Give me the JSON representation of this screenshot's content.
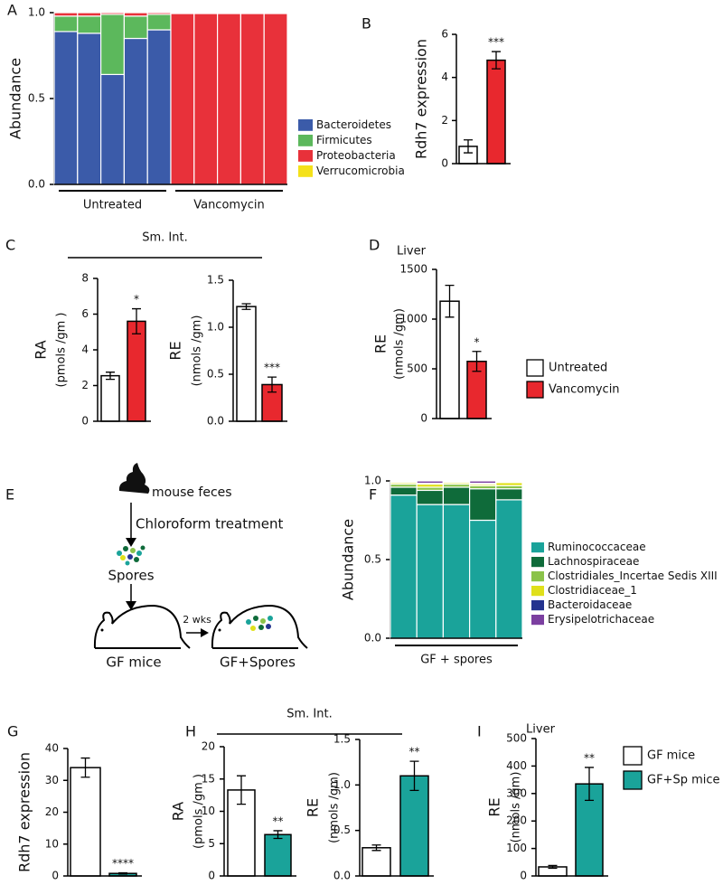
{
  "chart_data": [
    {
      "type": "stacked_bar",
      "panel": "A",
      "ylabel": "Abundance",
      "ylim": [
        0,
        1
      ],
      "yticks": [
        {
          "value": 0,
          "label": "0.0"
        },
        {
          "value": 0.5,
          "label": "0.5"
        },
        {
          "value": 1,
          "label": "1.0"
        }
      ],
      "groups": [
        "Untreated",
        "Vancomycin"
      ],
      "series": [
        {
          "name": "Bacteroidetes",
          "color": "#3b5ba9",
          "values": [
            0.89,
            0.88,
            0.64,
            0.85,
            0.9,
            0,
            0,
            0,
            0,
            0
          ]
        },
        {
          "name": "Firmicutes",
          "color": "#5cb85c",
          "values": [
            0.09,
            0.1,
            0.35,
            0.13,
            0.09,
            0,
            0,
            0,
            0,
            0
          ]
        },
        {
          "name": "Proteobacteria",
          "color": "#e8313a",
          "values": [
            0.02,
            0.02,
            0.01,
            0.02,
            0.01,
            0.995,
            0.995,
            0.995,
            0.995,
            0.995
          ]
        },
        {
          "name": "Verrucomicrobia",
          "color": "#f4e11a",
          "values": [
            0,
            0,
            0,
            0,
            0,
            0.005,
            0.005,
            0.005,
            0.005,
            0.005
          ]
        }
      ]
    },
    {
      "type": "bar",
      "panel": "B",
      "ylabel": "Rdh7 expression",
      "ylim": [
        0,
        6
      ],
      "yticks": [
        0,
        2,
        4,
        6
      ],
      "values": [
        0.8,
        4.8
      ],
      "errors": [
        0.3,
        0.4
      ],
      "colors": [
        "#ffffff",
        "#e8282e"
      ],
      "annotations": [
        null,
        "***"
      ]
    },
    {
      "type": "bar",
      "panel": "C",
      "group_title": "Sm. Int.",
      "ylabel": "RA",
      "ysublabel": "(pmols /gm )",
      "ylim": [
        0,
        8
      ],
      "yticks": [
        0,
        2,
        4,
        6,
        8
      ],
      "values": [
        2.55,
        5.6
      ],
      "errors": [
        0.2,
        0.7
      ],
      "colors": [
        "#ffffff",
        "#e8282e"
      ],
      "annotations": [
        null,
        "*"
      ]
    },
    {
      "type": "bar",
      "ylabel": "RE",
      "ysublabel": "(nmols /gm)",
      "ylim": [
        0,
        1.5
      ],
      "yticks": [
        {
          "value": 0,
          "label": "0.0"
        },
        {
          "value": 0.5,
          "label": "0.5"
        },
        {
          "value": 1,
          "label": "1.0"
        },
        {
          "value": 1.5,
          "label": "1.5"
        }
      ],
      "values": [
        1.22,
        0.39
      ],
      "errors": [
        0.03,
        0.08
      ],
      "colors": [
        "#ffffff",
        "#e8282e"
      ],
      "annotations": [
        null,
        "***"
      ]
    },
    {
      "type": "bar",
      "panel": "D",
      "title": "Liver",
      "ylabel": "RE",
      "ysublabel": "(nmols /gm)",
      "ylim": [
        0,
        1500
      ],
      "yticks": [
        0,
        500,
        1000,
        1500
      ],
      "values": [
        1180,
        575
      ],
      "errors": [
        160,
        100
      ],
      "colors": [
        "#ffffff",
        "#e8282e"
      ],
      "annotations": [
        null,
        "*"
      ]
    },
    {
      "type": "stacked_bar",
      "panel": "F",
      "ylabel": "Abundance",
      "ylim": [
        0,
        1
      ],
      "yticks": [
        {
          "value": 0,
          "label": "0.0"
        },
        {
          "value": 0.5,
          "label": "0.5"
        },
        {
          "value": 1,
          "label": "1.0"
        }
      ],
      "groups": [
        "GF + spores"
      ],
      "series": [
        {
          "name": "Ruminococcaceae",
          "color": "#1aa39a",
          "values": [
            0.91,
            0.85,
            0.85,
            0.75,
            0.88
          ]
        },
        {
          "name": "Lachnospiraceae",
          "color": "#0f6b3a",
          "values": [
            0.05,
            0.09,
            0.11,
            0.2,
            0.07
          ]
        },
        {
          "name": "Clostridiales_Incertae Sedis XIII",
          "color": "#8bc34a",
          "values": [
            0.02,
            0.02,
            0.02,
            0.02,
            0.02
          ]
        },
        {
          "name": "Clostridiaceae_1",
          "color": "#e0e01a",
          "values": [
            0.01,
            0.02,
            0.01,
            0.01,
            0.02
          ]
        },
        {
          "name": "Bacteroidaceae",
          "color": "#24338f",
          "values": [
            0.005,
            0.005,
            0.005,
            0.005,
            0.005
          ]
        },
        {
          "name": "Erysipelotrichaceae",
          "color": "#7b3fa0",
          "values": [
            0.005,
            0.015,
            0.005,
            0.015,
            0.005
          ]
        }
      ]
    },
    {
      "type": "bar",
      "panel": "G",
      "ylabel": "Rdh7 expression",
      "ylim": [
        0,
        40
      ],
      "yticks": [
        0,
        10,
        20,
        30,
        40
      ],
      "values": [
        34,
        0.8
      ],
      "errors": [
        3,
        0.2
      ],
      "colors": [
        "#ffffff",
        "#1aa39a"
      ],
      "annotations": [
        null,
        "****"
      ]
    },
    {
      "type": "bar",
      "panel": "H",
      "group_title": "Sm. Int.",
      "ylabel": "RA",
      "ysublabel": "(pmols /gm )",
      "ylim": [
        0,
        20
      ],
      "yticks": [
        0,
        5,
        10,
        15,
        20
      ],
      "values": [
        13.3,
        6.4
      ],
      "errors": [
        2.2,
        0.6
      ],
      "colors": [
        "#ffffff",
        "#1aa39a"
      ],
      "annotations": [
        null,
        "**"
      ]
    },
    {
      "type": "bar",
      "ylabel": "RE",
      "ysublabel": "(nmols /gm)",
      "ylim": [
        0,
        1.5
      ],
      "yticks": [
        {
          "value": 0,
          "label": "0.0"
        },
        {
          "value": 0.5,
          "label": "0.5"
        },
        {
          "value": 1,
          "label": "1.0"
        },
        {
          "value": 1.5,
          "label": "1.5"
        }
      ],
      "values": [
        0.31,
        1.1
      ],
      "errors": [
        0.03,
        0.16
      ],
      "colors": [
        "#ffffff",
        "#1aa39a"
      ],
      "annotations": [
        null,
        "**"
      ]
    },
    {
      "type": "bar",
      "panel": "I",
      "title": "Liver",
      "ylabel": "RE",
      "ysublabel": "(nmols /gm)",
      "ylim": [
        0,
        500
      ],
      "yticks": [
        0,
        100,
        200,
        300,
        400,
        500
      ],
      "values": [
        33,
        335
      ],
      "errors": [
        5,
        60
      ],
      "colors": [
        "#ffffff",
        "#1aa39a"
      ],
      "annotations": [
        null,
        "**"
      ]
    }
  ],
  "legends": [
    {
      "entries": [
        {
          "name": "Untreated",
          "color": "#ffffff"
        },
        {
          "name": "Vancomycin",
          "color": "#e8282e"
        }
      ]
    },
    {
      "entries": [
        {
          "name": "GF mice",
          "color": "#ffffff"
        },
        {
          "name": "GF+Sp mice",
          "color": "#1aa39a"
        }
      ]
    }
  ],
  "diagram": {
    "panel": "E",
    "feces": "mouse feces",
    "treatment": "Chloroform treatment",
    "spores": "Spores",
    "mouse1": "GF mice",
    "duration": "2 wks",
    "mouse2": "GF+Spores"
  }
}
